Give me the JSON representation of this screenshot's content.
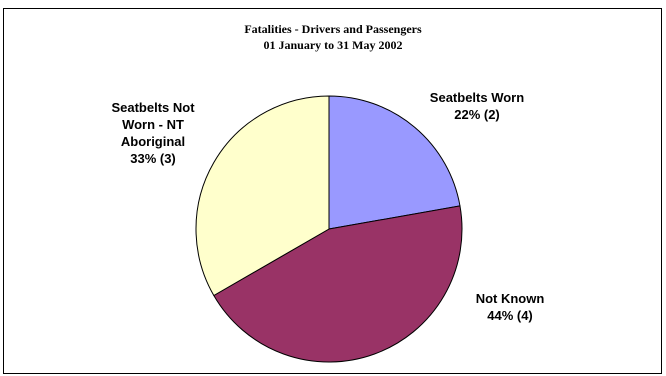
{
  "chart_data": {
    "type": "pie",
    "title": "Fatalities - Drivers and Passengers",
    "subtitle": "01 January to 31 May 2002",
    "slices": [
      {
        "label_lines": [
          "Seatbelts Worn",
          "22% (2)"
        ],
        "value": 2,
        "percent": 22,
        "color": "#9999ff"
      },
      {
        "label_lines": [
          "Not Known",
          "44% (4)"
        ],
        "value": 4,
        "percent": 44,
        "color": "#993366"
      },
      {
        "label_lines": [
          "Seatbelts Not",
          "Worn - NT",
          "Aboriginal",
          "33% (3)"
        ],
        "value": 3,
        "percent": 33,
        "color": "#ffffcc"
      }
    ],
    "legend": "none"
  }
}
